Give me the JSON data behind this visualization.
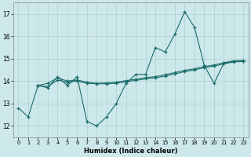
{
  "xlabel": "Humidex (Indice chaleur)",
  "background_color": "#cde8ea",
  "grid_color": "#b0cfd1",
  "line_color": "#1a6b6b",
  "ylim": [
    11.5,
    17.5
  ],
  "xlim": [
    -0.5,
    23.5
  ],
  "yticks": [
    12,
    13,
    14,
    15,
    16,
    17
  ],
  "xticks": [
    0,
    1,
    2,
    3,
    4,
    5,
    6,
    7,
    8,
    9,
    10,
    11,
    12,
    13,
    14,
    15,
    16,
    17,
    18,
    19,
    20,
    21,
    22,
    23
  ],
  "series1": [
    [
      0,
      12.8
    ],
    [
      1,
      12.4
    ],
    [
      2,
      13.8
    ],
    [
      3,
      13.7
    ],
    [
      4,
      14.2
    ],
    [
      5,
      13.8
    ],
    [
      6,
      14.2
    ],
    [
      7,
      12.2
    ],
    [
      8,
      12.0
    ],
    [
      9,
      12.4
    ],
    [
      10,
      13.0
    ],
    [
      11,
      13.9
    ],
    [
      12,
      14.3
    ],
    [
      13,
      14.3
    ],
    [
      14,
      15.5
    ],
    [
      15,
      15.3
    ],
    [
      16,
      16.1
    ],
    [
      17,
      17.1
    ],
    [
      18,
      16.4
    ],
    [
      19,
      14.7
    ],
    [
      20,
      13.9
    ],
    [
      21,
      14.8
    ],
    [
      22,
      14.9
    ],
    [
      23,
      14.9
    ]
  ],
  "series2": [
    [
      2,
      13.8
    ],
    [
      3,
      13.9
    ],
    [
      4,
      14.15
    ],
    [
      5,
      14.0
    ],
    [
      6,
      14.05
    ],
    [
      7,
      13.95
    ],
    [
      8,
      13.9
    ],
    [
      9,
      13.92
    ],
    [
      10,
      13.95
    ],
    [
      11,
      14.02
    ],
    [
      12,
      14.08
    ],
    [
      13,
      14.15
    ],
    [
      14,
      14.2
    ],
    [
      15,
      14.28
    ],
    [
      16,
      14.38
    ],
    [
      17,
      14.48
    ],
    [
      18,
      14.55
    ],
    [
      19,
      14.65
    ],
    [
      20,
      14.72
    ],
    [
      21,
      14.82
    ],
    [
      22,
      14.9
    ],
    [
      23,
      14.92
    ]
  ],
  "series3": [
    [
      2,
      13.8
    ],
    [
      3,
      13.75
    ],
    [
      4,
      14.05
    ],
    [
      5,
      13.95
    ],
    [
      6,
      14.0
    ],
    [
      7,
      13.9
    ],
    [
      8,
      13.88
    ],
    [
      9,
      13.88
    ],
    [
      10,
      13.9
    ],
    [
      11,
      13.97
    ],
    [
      12,
      14.03
    ],
    [
      13,
      14.1
    ],
    [
      14,
      14.15
    ],
    [
      15,
      14.22
    ],
    [
      16,
      14.32
    ],
    [
      17,
      14.42
    ],
    [
      18,
      14.5
    ],
    [
      19,
      14.6
    ],
    [
      20,
      14.67
    ],
    [
      21,
      14.77
    ],
    [
      22,
      14.85
    ],
    [
      23,
      14.88
    ]
  ]
}
